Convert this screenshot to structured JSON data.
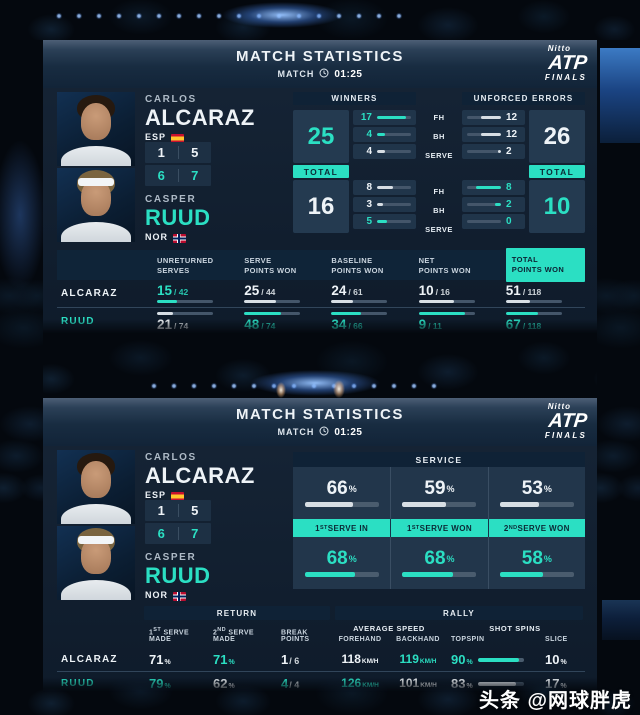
{
  "colors": {
    "teal": "#2bdfc3"
  },
  "header": {
    "title": "MATCH STATISTICS",
    "match_label": "MATCH",
    "time": "01:25"
  },
  "logo": {
    "nitto": "Nitto",
    "atp": "ATP",
    "finals": "FINALS"
  },
  "players": {
    "p1": {
      "first": "CARLOS",
      "last": "ALCARAZ",
      "last_color": "white",
      "country": "ESP"
    },
    "p2": {
      "first": "CASPER",
      "last": "RUUD",
      "last_color": "teal",
      "country": "NOR"
    }
  },
  "score": {
    "p1": [
      "1",
      "5"
    ],
    "p2": [
      "6",
      "7"
    ],
    "p1_color": "white",
    "p2_color": "teal"
  },
  "stats_labels": {
    "total": "TOTAL",
    "shot_types": [
      "FH",
      "BH",
      "SERVE"
    ]
  },
  "winners": {
    "title": "WINNERS",
    "p1": {
      "total": {
        "v": "25",
        "c": "teal"
      },
      "rows": [
        {
          "v": "17",
          "c": "teal",
          "fill": 85
        },
        {
          "v": "4",
          "c": "teal",
          "fill": 24
        },
        {
          "v": "4",
          "c": "white",
          "fill": 24
        }
      ]
    },
    "p2": {
      "total": {
        "v": "16",
        "c": "white"
      },
      "rows": [
        {
          "v": "8",
          "c": "white",
          "fill": 47
        },
        {
          "v": "3",
          "c": "white",
          "fill": 18
        },
        {
          "v": "5",
          "c": "teal",
          "fill": 29
        }
      ]
    }
  },
  "unforced_errors": {
    "title": "UNFORCED ERRORS",
    "p1": {
      "total": {
        "v": "26",
        "c": "white"
      },
      "rows": [
        {
          "v": "12",
          "c": "white",
          "fill": 60
        },
        {
          "v": "12",
          "c": "white",
          "fill": 60
        },
        {
          "v": "2",
          "c": "white",
          "fill": 10
        }
      ]
    },
    "p2": {
      "total": {
        "v": "10",
        "c": "teal"
      },
      "rows": [
        {
          "v": "8",
          "c": "teal",
          "fill": 75
        },
        {
          "v": "2",
          "c": "teal",
          "fill": 18
        },
        {
          "v": "0",
          "c": "teal",
          "fill": 0
        }
      ]
    }
  },
  "points_table": {
    "headers": [
      {
        "l1": "UNRETURNED",
        "l2": "SERVES",
        "hl": ""
      },
      {
        "l1": "SERVE",
        "l2": "POINTS WON",
        "hl": ""
      },
      {
        "l1": "BASELINE",
        "l2": "POINTS WON",
        "hl": ""
      },
      {
        "l1": "NET",
        "l2": "POINTS WON",
        "hl": ""
      },
      {
        "l1": "TOTAL",
        "l2": "POINTS WON",
        "hl": "hl"
      }
    ],
    "rows": [
      {
        "name": "ALCARAZ",
        "name_color": "white",
        "cells": [
          {
            "num": "15",
            "den": "/ 42",
            "c": "teal",
            "fill": 36
          },
          {
            "num": "25",
            "den": "/ 44",
            "c": "white",
            "fill": 57
          },
          {
            "num": "24",
            "den": "/ 61",
            "c": "white",
            "fill": 39
          },
          {
            "num": "10",
            "den": "/ 16",
            "c": "white",
            "fill": 63
          },
          {
            "num": "51",
            "den": "/ 118",
            "c": "white",
            "fill": 43
          }
        ]
      },
      {
        "name": "RUUD",
        "name_color": "teal",
        "cells": [
          {
            "num": "21",
            "den": "/ 74",
            "c": "white",
            "fill": 28
          },
          {
            "num": "48",
            "den": "/ 74",
            "c": "teal",
            "fill": 65
          },
          {
            "num": "34",
            "den": "/ 66",
            "c": "teal",
            "fill": 52
          },
          {
            "num": "9",
            "den": "/ 11",
            "c": "teal",
            "fill": 82
          },
          {
            "num": "67",
            "den": "/ 118",
            "c": "teal",
            "fill": 57
          }
        ]
      }
    ]
  },
  "service": {
    "title": "SERVICE",
    "pct": "%",
    "labels": [
      {
        "pre": "1",
        "sup": "ST",
        "rest": " SERVE IN"
      },
      {
        "pre": "1",
        "sup": "ST",
        "rest": " SERVE WON"
      },
      {
        "pre": "2",
        "sup": "ND",
        "rest": " SERVE WON"
      }
    ],
    "p1": [
      {
        "v": "66",
        "c": "white",
        "fill": 66
      },
      {
        "v": "59",
        "c": "white",
        "fill": 59
      },
      {
        "v": "53",
        "c": "white",
        "fill": 53
      }
    ],
    "p2": [
      {
        "v": "68",
        "c": "teal",
        "fill": 68
      },
      {
        "v": "68",
        "c": "teal",
        "fill": 68
      },
      {
        "v": "58",
        "c": "teal",
        "fill": 58
      }
    ]
  },
  "return_section": {
    "title": "RETURN",
    "headers": [
      {
        "pre": "1",
        "sup": "ST",
        "rest": " SERVE MADE"
      },
      {
        "pre": "2",
        "sup": "ND",
        "rest": " SERVE MADE"
      },
      {
        "pre": "",
        "sup": "",
        "rest": "BREAK POINTS"
      }
    ],
    "rows": [
      {
        "cells": [
          {
            "v": "71",
            "unit": "%",
            "c": "white"
          },
          {
            "v": "71",
            "unit": "%",
            "c": "teal"
          },
          {
            "v": "1",
            "den": "/ 6",
            "c": "white"
          }
        ]
      },
      {
        "cells": [
          {
            "v": "79",
            "unit": "%",
            "c": "teal"
          },
          {
            "v": "62",
            "unit": "%",
            "c": "white"
          },
          {
            "v": "4",
            "den": "/ 4",
            "c": "teal"
          }
        ]
      }
    ]
  },
  "rally_section": {
    "title": "RALLY",
    "groups": [
      {
        "label": "AVERAGE SPEED",
        "cols": [
          "FOREHAND",
          "BACKHAND"
        ]
      },
      {
        "label": "SHOT SPINS",
        "cols": [
          "TOPSPIN",
          "SLICE"
        ]
      }
    ],
    "rows": [
      {
        "speeds": [
          {
            "v": "118",
            "unit": "KM/H",
            "c": "white"
          },
          {
            "v": "119",
            "unit": "KM/H",
            "c": "teal"
          }
        ],
        "topspin": {
          "v": "90",
          "unit": "%",
          "c": "teal",
          "fill": 90
        },
        "slice": {
          "v": "10",
          "unit": "%",
          "c": "white"
        }
      },
      {
        "speeds": [
          {
            "v": "126",
            "unit": "KM/H",
            "c": "teal"
          },
          {
            "v": "101",
            "unit": "KM/H",
            "c": "white"
          }
        ],
        "topspin": {
          "v": "83",
          "unit": "%",
          "c": "white",
          "fill": 83
        },
        "slice": {
          "v": "17",
          "unit": "%",
          "c": "white"
        }
      }
    ]
  },
  "watermark": "头条 @网球胖虎"
}
